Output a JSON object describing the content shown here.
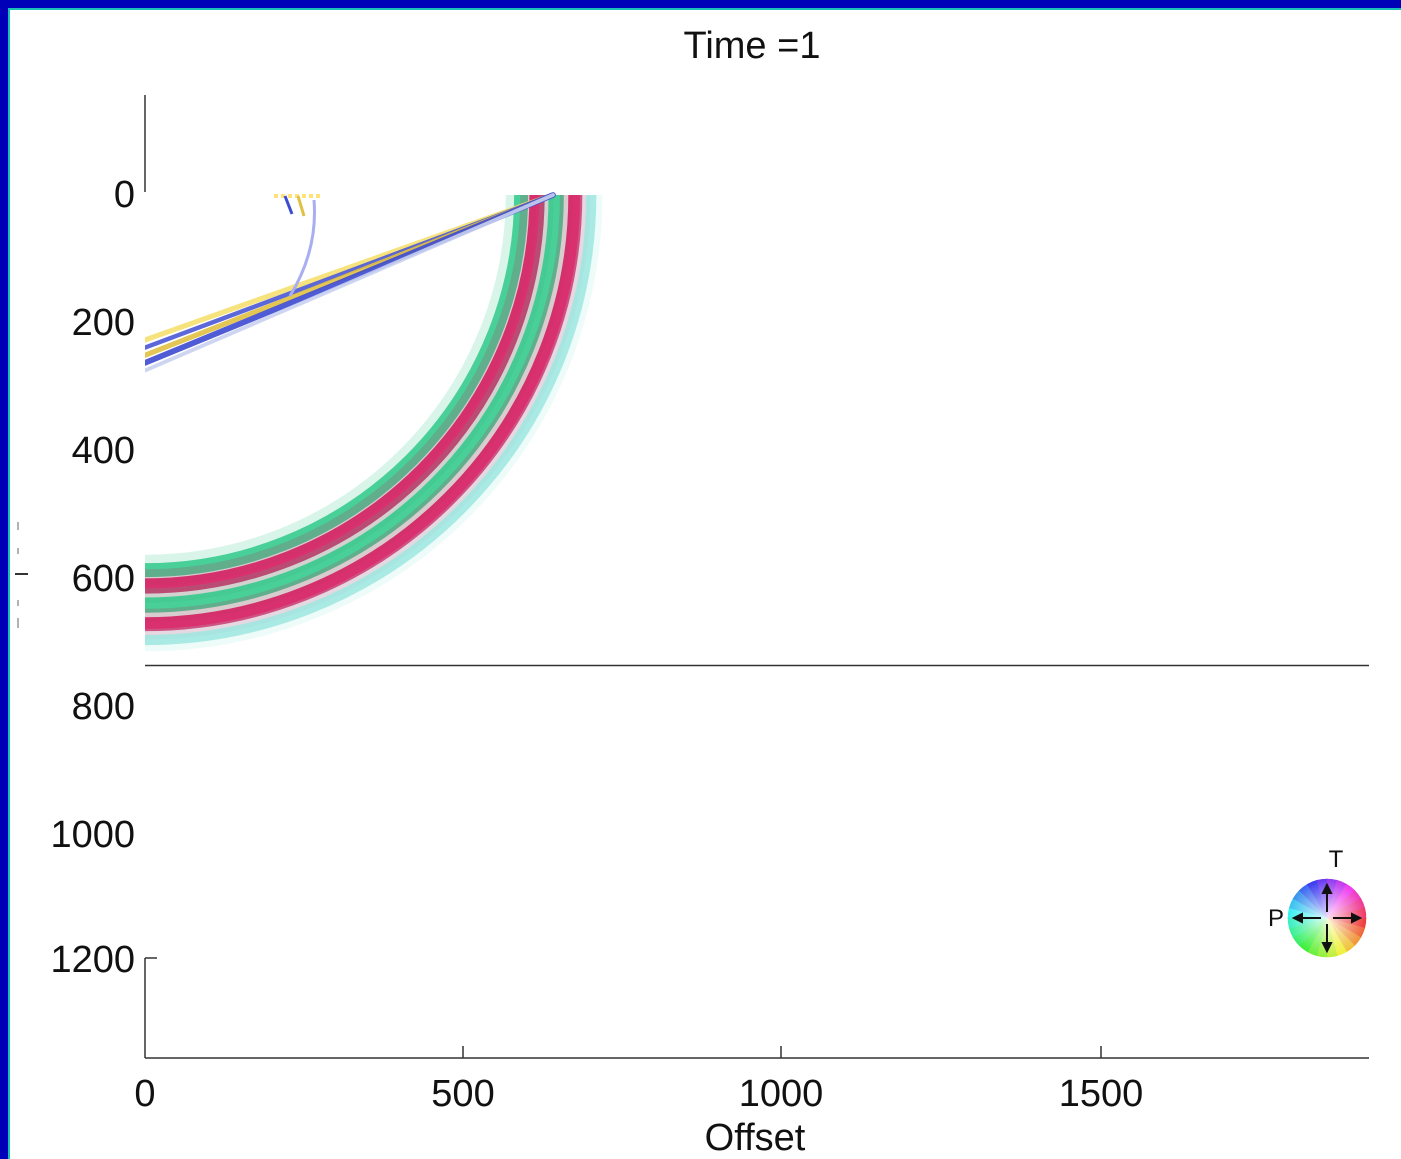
{
  "chart_data": {
    "type": "heatmap",
    "title": "Time =1",
    "xlabel": "Offset",
    "ylabel": "",
    "xlim": [
      0,
      1920
    ],
    "ylim": [
      1350,
      -150
    ],
    "y_inverted": true,
    "x_ticks": [
      "0",
      "500",
      "1000",
      "1500"
    ],
    "y_ticks": [
      "0",
      "200",
      "400",
      "600",
      "800",
      "1000",
      "1200"
    ],
    "interface_depth": 740,
    "fronts": [
      {
        "kind": "arc",
        "cx": 0,
        "cy": 0,
        "r": 590,
        "color": "#2ec98a",
        "width": 22
      },
      {
        "kind": "arc",
        "cx": 0,
        "cy": 0,
        "r": 615,
        "color": "#d4145a",
        "width": 24
      },
      {
        "kind": "arc",
        "cx": 0,
        "cy": 0,
        "r": 645,
        "color": "#2ec98a",
        "width": 24
      },
      {
        "kind": "arc",
        "cx": 0,
        "cy": 0,
        "r": 675,
        "color": "#d4145a",
        "width": 22
      },
      {
        "kind": "arc",
        "cx": 0,
        "cy": 0,
        "r": 700,
        "color": "#9ce8e0",
        "width": 16
      }
    ],
    "head_waves": [
      {
        "x0": 0,
        "y0": 228,
        "x1": 640,
        "y1": 0,
        "color": "#f5e070",
        "width": 8
      },
      {
        "x0": 0,
        "y0": 240,
        "x1": 640,
        "y1": 0,
        "color": "#4a56d6",
        "width": 7
      },
      {
        "x0": 0,
        "y0": 252,
        "x1": 640,
        "y1": 0,
        "color": "#e0c040",
        "width": 8
      },
      {
        "x0": 0,
        "y0": 264,
        "x1": 640,
        "y1": 0,
        "color": "#3c4ad0",
        "width": 9
      },
      {
        "x0": 0,
        "y0": 276,
        "x1": 640,
        "y1": 0,
        "color": "#c8d0f0",
        "width": 6
      }
    ],
    "widget": {
      "label_t": "T",
      "label_p": "P"
    }
  }
}
